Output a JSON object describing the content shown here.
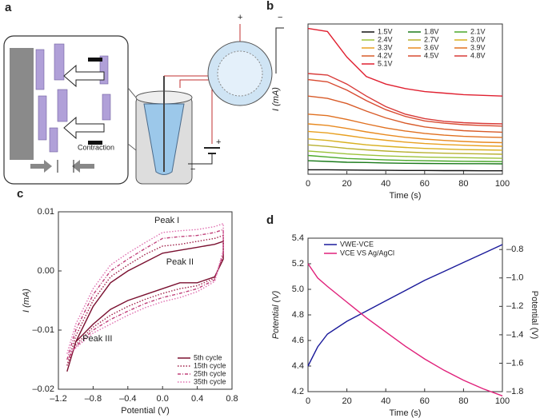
{
  "diagram": {
    "label": "a",
    "texts": {
      "contraction": "Contraction",
      "cell_plus": "+",
      "cell_minus": "−",
      "battery_plus": "+",
      "battery_minus": "−"
    }
  },
  "chart_data": [
    {
      "type": "line",
      "label": "b",
      "xlabel": "Time (s)",
      "ylabel": "I (mA)",
      "x": [
        0,
        10,
        20,
        30,
        40,
        50,
        60,
        70,
        80,
        90,
        100
      ],
      "xlim": [
        0,
        100
      ],
      "xticks": [
        0,
        20,
        40,
        60,
        80,
        100
      ],
      "ylim": [
        0,
        10
      ],
      "yticks": [],
      "series": [
        {
          "name": "1.5V",
          "color": "#111111",
          "dash": "solid",
          "values": [
            0.3,
            0.3,
            0.28,
            0.27,
            0.26,
            0.25,
            0.25,
            0.24,
            0.24,
            0.23,
            0.23
          ]
        },
        {
          "name": "1.8V",
          "color": "#1a7a1a",
          "dash": "solid",
          "values": [
            0.9,
            0.85,
            0.8,
            0.78,
            0.75,
            0.73,
            0.72,
            0.71,
            0.7,
            0.7,
            0.69
          ]
        },
        {
          "name": "2.1V",
          "color": "#4aa82a",
          "dash": "solid",
          "values": [
            1.25,
            1.15,
            1.05,
            1.0,
            0.95,
            0.92,
            0.9,
            0.88,
            0.86,
            0.85,
            0.84
          ]
        },
        {
          "name": "2.4V",
          "color": "#9cc23a",
          "dash": "solid",
          "values": [
            1.55,
            1.45,
            1.35,
            1.28,
            1.22,
            1.18,
            1.14,
            1.12,
            1.1,
            1.08,
            1.06
          ]
        },
        {
          "name": "2.7V",
          "color": "#b8b030",
          "dash": "solid",
          "values": [
            1.95,
            1.85,
            1.72,
            1.62,
            1.54,
            1.48,
            1.43,
            1.4,
            1.37,
            1.35,
            1.33
          ]
        },
        {
          "name": "3.0V",
          "color": "#d8b020",
          "dash": "solid",
          "values": [
            2.35,
            2.25,
            2.1,
            1.96,
            1.86,
            1.78,
            1.72,
            1.68,
            1.64,
            1.62,
            1.6
          ]
        },
        {
          "name": "3.3V",
          "color": "#e8a020",
          "dash": "solid",
          "values": [
            2.85,
            2.75,
            2.58,
            2.4,
            2.26,
            2.14,
            2.04,
            1.98,
            1.93,
            1.89,
            1.86
          ]
        },
        {
          "name": "3.6V",
          "color": "#e88a20",
          "dash": "solid",
          "values": [
            3.35,
            3.25,
            3.05,
            2.82,
            2.62,
            2.46,
            2.34,
            2.25,
            2.18,
            2.13,
            2.1
          ]
        },
        {
          "name": "3.9V",
          "color": "#e07020",
          "dash": "solid",
          "values": [
            4.0,
            3.9,
            3.65,
            3.35,
            3.08,
            2.88,
            2.72,
            2.6,
            2.52,
            2.48,
            2.45
          ]
        },
        {
          "name": "4.2V",
          "color": "#d85a28",
          "dash": "solid",
          "values": [
            5.2,
            5.05,
            4.7,
            4.2,
            3.75,
            3.4,
            3.15,
            3.0,
            2.9,
            2.84,
            2.8
          ]
        },
        {
          "name": "4.5V",
          "color": "#d84a30",
          "dash": "solid",
          "values": [
            6.3,
            6.15,
            5.6,
            4.9,
            4.3,
            3.85,
            3.55,
            3.4,
            3.3,
            3.24,
            3.2
          ]
        },
        {
          "name": "4.8V",
          "color": "#d83a38",
          "dash": "solid",
          "values": [
            6.7,
            6.6,
            6.0,
            5.2,
            4.5,
            4.0,
            3.7,
            3.52,
            3.43,
            3.38,
            3.35
          ]
        },
        {
          "name": "5.1V",
          "color": "#e02030",
          "dash": "solid",
          "values": [
            9.7,
            9.5,
            7.8,
            6.5,
            6.0,
            5.7,
            5.5,
            5.4,
            5.3,
            5.25,
            5.2
          ]
        }
      ]
    },
    {
      "type": "line",
      "label": "c",
      "xlabel": "Potential (V)",
      "ylabel": "I (mA)",
      "xlim": [
        -1.2,
        0.8
      ],
      "xticks": [
        {
          "value": -1.2,
          "label": "–1.2"
        },
        {
          "value": -0.8,
          "label": "–0.8"
        },
        {
          "value": -0.4,
          "label": "–0.4"
        },
        {
          "value": 0,
          "label": "0.0"
        },
        0.4,
        0.8
      ],
      "ylim": [
        -0.02,
        0.01
      ],
      "yticks": [
        0.01,
        {
          "value": 0,
          "label": "0.00"
        },
        {
          "value": -0.01,
          "label": "–0.01"
        },
        {
          "value": -0.02,
          "label": "–0.02"
        }
      ],
      "annotations": [
        "Peak I",
        "Peak II",
        "Peak III"
      ],
      "series": [
        {
          "name": "5th cycle",
          "color": "#7a1030",
          "dash": "solid",
          "x": [
            -1.1,
            -1.0,
            -0.8,
            -0.6,
            -0.4,
            -0.2,
            0.0,
            0.2,
            0.4,
            0.6,
            0.7,
            0.7,
            0.6,
            0.4,
            0.2,
            0.0,
            -0.2,
            -0.4,
            -0.6,
            -0.8,
            -1.0,
            -1.1
          ],
          "values": [
            -0.017,
            -0.012,
            -0.006,
            -0.002,
            0.0,
            0.0015,
            0.003,
            0.0035,
            0.004,
            0.0045,
            0.005,
            0.002,
            -0.001,
            -0.002,
            -0.002,
            -0.003,
            -0.004,
            -0.005,
            -0.0065,
            -0.009,
            -0.012,
            -0.017
          ]
        },
        {
          "name": "15th cycle",
          "color": "#a0204a",
          "dash": "dotted",
          "x": [
            -1.1,
            -1.0,
            -0.8,
            -0.6,
            -0.4,
            -0.2,
            0.0,
            0.2,
            0.4,
            0.6,
            0.7,
            0.7,
            0.6,
            0.4,
            0.2,
            0.0,
            -0.2,
            -0.4,
            -0.6,
            -0.8,
            -1.0,
            -1.1
          ],
          "values": [
            -0.016,
            -0.011,
            -0.005,
            -0.001,
            0.001,
            0.0028,
            0.0042,
            0.0045,
            0.005,
            0.0055,
            0.006,
            0.0025,
            -0.0012,
            -0.0025,
            -0.003,
            -0.0038,
            -0.0048,
            -0.006,
            -0.0075,
            -0.0095,
            -0.0125,
            -0.016
          ]
        },
        {
          "name": "25th cycle",
          "color": "#c0407a",
          "dash": "dashdot",
          "x": [
            -1.1,
            -1.0,
            -0.8,
            -0.6,
            -0.4,
            -0.2,
            0.0,
            0.2,
            0.4,
            0.6,
            0.7,
            0.7,
            0.6,
            0.4,
            0.2,
            0.0,
            -0.2,
            -0.4,
            -0.6,
            -0.8,
            -1.0,
            -1.1
          ],
          "values": [
            -0.015,
            -0.01,
            -0.004,
            0.0,
            0.002,
            0.0038,
            0.0055,
            0.0058,
            0.006,
            0.0065,
            0.007,
            0.003,
            -0.0015,
            -0.003,
            -0.0038,
            -0.0045,
            -0.0055,
            -0.0068,
            -0.0082,
            -0.01,
            -0.0128,
            -0.015
          ]
        },
        {
          "name": "35th cycle",
          "color": "#e070b0",
          "dash": "dotted",
          "x": [
            -1.1,
            -1.0,
            -0.8,
            -0.6,
            -0.4,
            -0.2,
            0.0,
            0.2,
            0.4,
            0.6,
            0.7,
            0.7,
            0.6,
            0.4,
            0.2,
            0.0,
            -0.2,
            -0.4,
            -0.6,
            -0.8,
            -1.0,
            -1.1
          ],
          "values": [
            -0.014,
            -0.009,
            -0.003,
            0.001,
            0.003,
            0.0048,
            0.0065,
            0.0068,
            0.007,
            0.0075,
            0.008,
            0.0035,
            -0.0018,
            -0.0035,
            -0.0045,
            -0.0052,
            -0.0062,
            -0.0075,
            -0.009,
            -0.0105,
            -0.013,
            -0.014
          ]
        }
      ]
    },
    {
      "type": "line",
      "label": "d",
      "xlabel": "Time (s)",
      "ylabel": "Potential (V)",
      "y2label": "Potential (V)",
      "x": [
        0,
        5,
        10,
        20,
        30,
        40,
        50,
        60,
        70,
        80,
        90,
        100
      ],
      "xlim": [
        0,
        100
      ],
      "xticks": [
        0,
        20,
        40,
        60,
        80,
        100
      ],
      "ylim": [
        4.2,
        5.4
      ],
      "yticks": [
        4.2,
        4.4,
        4.6,
        4.8,
        {
          "value": 5,
          "label": "5.0"
        },
        5.2,
        5.4
      ],
      "y2lim": [
        -1.8,
        -0.72
      ],
      "y2ticks": [
        {
          "value": -0.8,
          "label": "–0.8"
        },
        {
          "value": -1.0,
          "label": "–1.0"
        },
        {
          "value": -1.2,
          "label": "–1.2"
        },
        {
          "value": -1.4,
          "label": "–1.4"
        },
        {
          "value": -1.6,
          "label": "–1.6"
        },
        {
          "value": -1.8,
          "label": "–1.8"
        }
      ],
      "series": [
        {
          "name": "VWE-VCE",
          "color": "#1a1a9a",
          "dash": "solid",
          "values": [
            4.4,
            4.55,
            4.65,
            4.75,
            4.83,
            4.91,
            4.99,
            5.07,
            5.14,
            5.21,
            5.28,
            5.35
          ]
        },
        {
          "name": "VCE VS Ag/AgCl",
          "color": "#e0207a",
          "dash": "solid",
          "axis": "y2",
          "values": [
            -0.9,
            -1.0,
            -1.06,
            -1.17,
            -1.28,
            -1.38,
            -1.48,
            -1.57,
            -1.65,
            -1.72,
            -1.78,
            -1.83
          ]
        }
      ]
    }
  ]
}
